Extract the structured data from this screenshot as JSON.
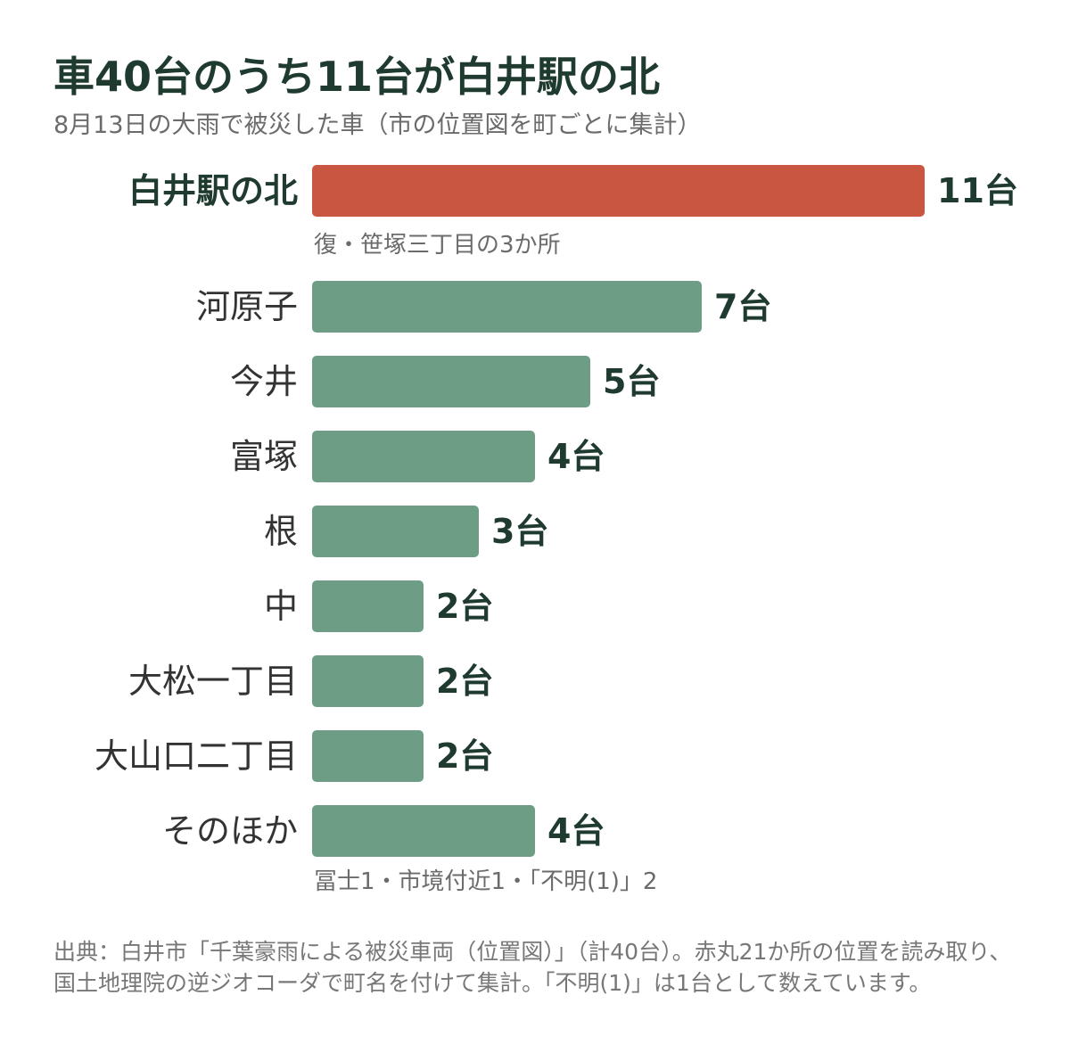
{
  "title": "車40台のうち11台が白井駅の北",
  "subtitle": "8月13日の大雨で被災した車（市の位置図を町ごとに集計）",
  "source": "出典：白井市「千葉豪雨による被災車両（位置図）」（計40台）。赤丸21か所の位置を読み取り、国土地理院の逆ジオコーダで町名を付けて集計。「不明(1)」は1台として数えています。",
  "colors": {
    "highlight": "#c85640",
    "normal": "#6d9e85"
  },
  "chart_data": {
    "type": "bar",
    "orientation": "horizontal",
    "unit": "台",
    "categories": [
      "白井駅の北",
      "河原子",
      "今井",
      "富塚",
      "根",
      "中",
      "大松一丁目",
      "大山口二丁目",
      "そのほか"
    ],
    "values": [
      11,
      7,
      5,
      4,
      3,
      2,
      2,
      2,
      4
    ],
    "value_labels": [
      "11台",
      "7台",
      "5台",
      "4台",
      "3台",
      "2台",
      "2台",
      "2台",
      "4台"
    ],
    "highlight_index": 0,
    "notes": [
      {
        "index": 0,
        "text": "復・笹塚三丁目の3か所"
      },
      {
        "index": 8,
        "text": "冨士1・市境付近1・「不明(1)」2"
      }
    ],
    "xlim": [
      0,
      11
    ],
    "grid": false,
    "legend": "none"
  }
}
